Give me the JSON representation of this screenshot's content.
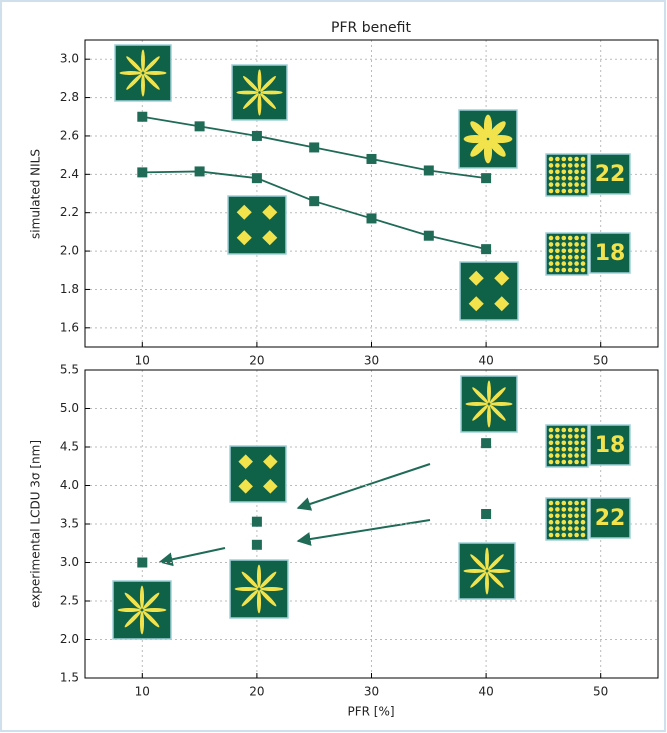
{
  "chart_data": [
    {
      "type": "line",
      "title": "PFR benefit",
      "ylabel": "simulated NILS",
      "x": [
        10,
        15,
        20,
        25,
        30,
        35,
        40
      ],
      "series": [
        {
          "color": "#1f6b55",
          "values": [
            2.7,
            2.65,
            2.6,
            2.54,
            2.48,
            2.42,
            2.38
          ]
        },
        {
          "color": "#1f6b55",
          "values": [
            2.41,
            2.415,
            2.38,
            2.26,
            2.17,
            2.08,
            2.01
          ]
        }
      ],
      "xlim": [
        5,
        55
      ],
      "xticks": [
        10,
        20,
        30,
        40,
        50
      ],
      "ylim": [
        1.5,
        3.1
      ],
      "yticks": [
        1.6,
        1.8,
        {
          "value": 2,
          "label": "2.0"
        },
        2.2,
        2.4,
        2.6,
        2.8,
        {
          "value": 3,
          "label": "3.0"
        }
      ],
      "grid": true,
      "annotations": [
        "22",
        "18"
      ]
    },
    {
      "type": "scatter",
      "ylabel": "experimental LCDU 3σ [nm]",
      "xlabel": "PFR [%]",
      "x": [
        10,
        20,
        20,
        40,
        40
      ],
      "values": [
        3.0,
        3.53,
        3.23,
        4.55,
        3.63
      ],
      "color": "#1f6b55",
      "xlim": [
        5,
        55
      ],
      "xticks": [
        10,
        20,
        30,
        40,
        50
      ],
      "ylim": [
        1.5,
        5.5
      ],
      "yticks": [
        1.5,
        {
          "value": 2,
          "label": "2.0"
        },
        2.5,
        {
          "value": 3,
          "label": "3.0"
        },
        3.5,
        {
          "value": 4,
          "label": "4.0"
        },
        4.5,
        {
          "value": 5,
          "label": "5.0"
        },
        5.5
      ],
      "grid": true,
      "annotations": [
        "18",
        "22"
      ]
    }
  ]
}
